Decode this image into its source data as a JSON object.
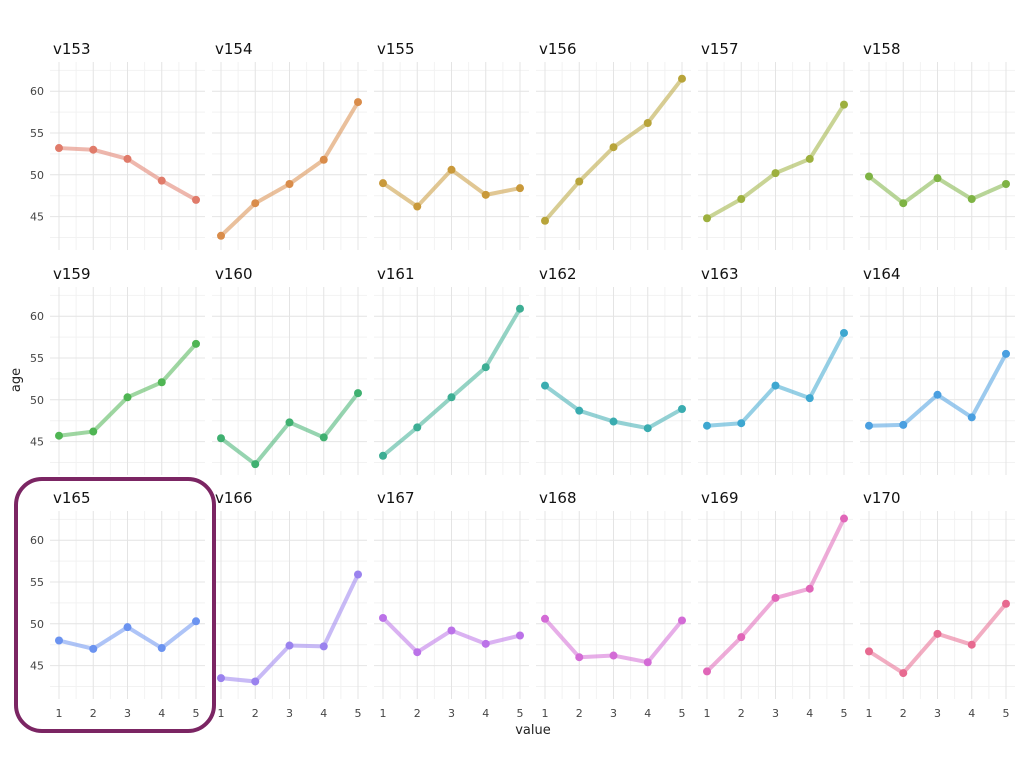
{
  "chart_data": {
    "type": "line",
    "facet_layout": "3 rows x 6 columns, shared axes",
    "xlabel": "value",
    "ylabel": "age",
    "x": [
      1,
      2,
      3,
      4,
      5
    ],
    "x_ticks": [
      "1",
      "2",
      "3",
      "4",
      "5"
    ],
    "y_ticks": [
      "45",
      "50",
      "55",
      "60"
    ],
    "ylim": [
      41,
      63.5
    ],
    "xlim": [
      1,
      5
    ],
    "grid": true,
    "highlight": "v165",
    "series": [
      {
        "name": "v153",
        "color": "#e07b6a",
        "values": [
          53.2,
          53.0,
          51.9,
          49.3,
          47.0
        ]
      },
      {
        "name": "v154",
        "color": "#d98c4a",
        "values": [
          42.7,
          46.6,
          48.9,
          51.8,
          58.7
        ]
      },
      {
        "name": "v155",
        "color": "#c9993a",
        "values": [
          49.0,
          46.2,
          50.6,
          47.6,
          48.4
        ]
      },
      {
        "name": "v156",
        "color": "#b8a43a",
        "values": [
          44.5,
          49.2,
          53.3,
          56.2,
          61.5
        ]
      },
      {
        "name": "v157",
        "color": "#9db03e",
        "values": [
          44.8,
          47.1,
          50.2,
          51.9,
          58.4
        ]
      },
      {
        "name": "v158",
        "color": "#7eb344",
        "values": [
          49.8,
          46.6,
          49.6,
          47.1,
          48.9
        ]
      },
      {
        "name": "v159",
        "color": "#4fb553",
        "values": [
          45.7,
          46.2,
          50.3,
          52.1,
          56.7
        ]
      },
      {
        "name": "v160",
        "color": "#3fb070",
        "values": [
          45.4,
          42.3,
          47.3,
          45.5,
          50.8
        ]
      },
      {
        "name": "v161",
        "color": "#3dae94",
        "values": [
          43.3,
          46.7,
          50.3,
          53.9,
          60.9
        ]
      },
      {
        "name": "v162",
        "color": "#3aacb0",
        "values": [
          51.7,
          48.7,
          47.4,
          46.6,
          48.9
        ]
      },
      {
        "name": "v163",
        "color": "#3ea7d0",
        "values": [
          46.9,
          47.2,
          51.7,
          50.2,
          58.0
        ]
      },
      {
        "name": "v164",
        "color": "#4a9fe0",
        "values": [
          46.9,
          47.0,
          50.6,
          47.9,
          55.5
        ]
      },
      {
        "name": "v165",
        "color": "#6b93f0",
        "values": [
          48.0,
          47.0,
          49.6,
          47.1,
          50.3
        ]
      },
      {
        "name": "v166",
        "color": "#9a82ee",
        "values": [
          43.5,
          43.1,
          47.4,
          47.3,
          55.9
        ]
      },
      {
        "name": "v167",
        "color": "#bb72e8",
        "values": [
          50.7,
          46.6,
          49.2,
          47.6,
          48.6
        ]
      },
      {
        "name": "v168",
        "color": "#d36bd6",
        "values": [
          50.6,
          46.0,
          46.2,
          45.4,
          50.4
        ]
      },
      {
        "name": "v169",
        "color": "#e066b8",
        "values": [
          44.3,
          48.4,
          53.1,
          54.2,
          62.6
        ]
      },
      {
        "name": "v170",
        "color": "#e76a90",
        "values": [
          46.7,
          44.1,
          48.8,
          47.5,
          52.4
        ]
      }
    ]
  }
}
